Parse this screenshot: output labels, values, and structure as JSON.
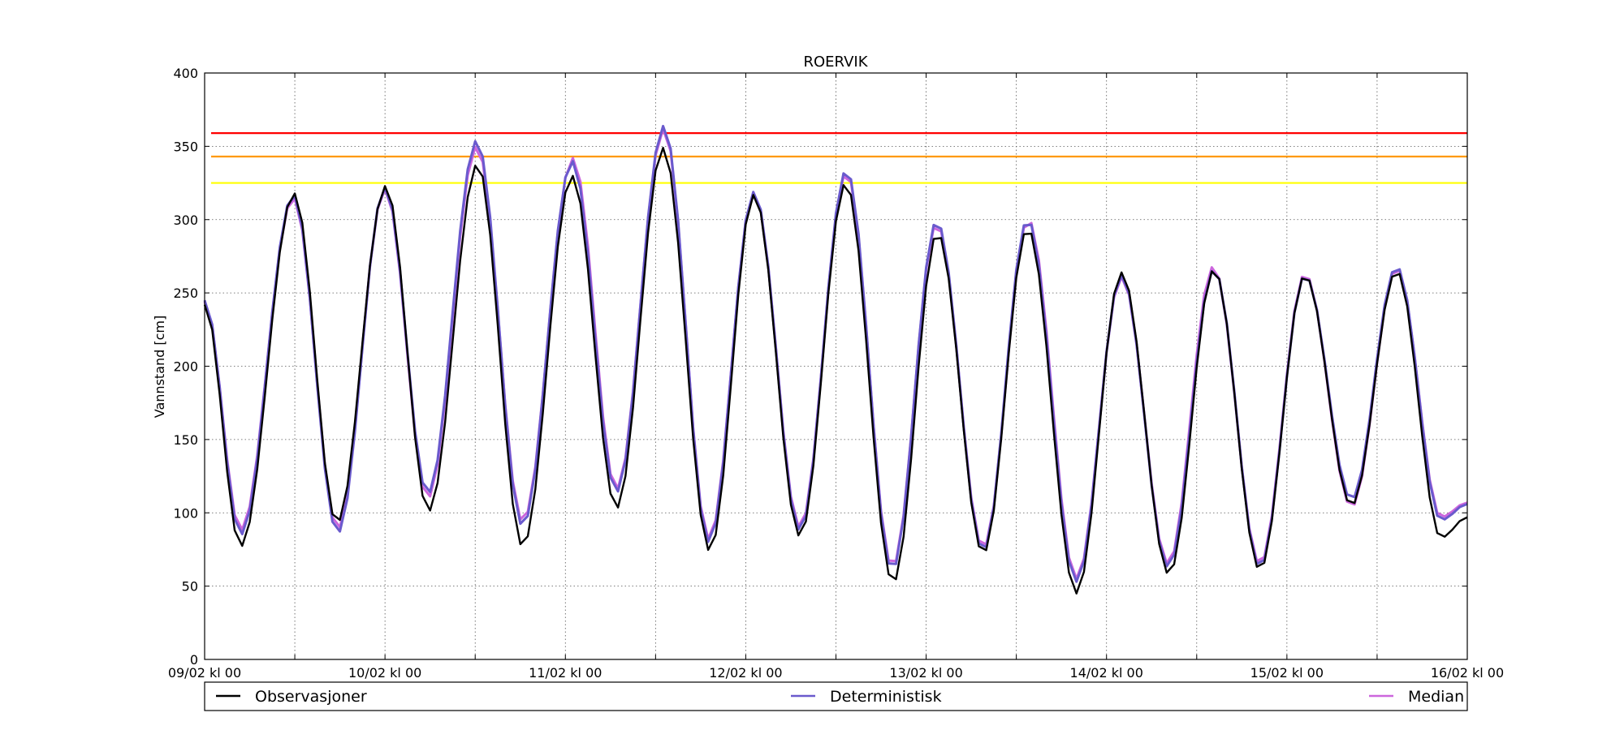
{
  "chart_data": {
    "type": "line",
    "title": "ROERVIK",
    "xlabel": "",
    "ylabel": "Vannstand [cm]",
    "ylim": [
      0,
      400
    ],
    "yticks": [
      0,
      50,
      100,
      150,
      200,
      250,
      300,
      350,
      400
    ],
    "xlim_hours": [
      0,
      168
    ],
    "xticks": [
      {
        "h": 0,
        "label": "09/02 kl 00"
      },
      {
        "h": 24,
        "label": "10/02 kl 00"
      },
      {
        "h": 48,
        "label": "11/02 kl 00"
      },
      {
        "h": 72,
        "label": "12/02 kl 00"
      },
      {
        "h": 96,
        "label": "13/02 kl 00"
      },
      {
        "h": 120,
        "label": "14/02 kl 00"
      },
      {
        "h": 144,
        "label": "15/02 kl 00"
      },
      {
        "h": 168,
        "label": "16/02 kl 00"
      }
    ],
    "minor_xticks_hours": [
      12,
      36,
      60,
      84,
      108,
      132,
      156
    ],
    "grid": true,
    "legend_position": "below",
    "thresholds": [
      {
        "value": 359,
        "color": "#ff0000"
      },
      {
        "value": 343,
        "color": "#ff9900"
      },
      {
        "value": 325,
        "color": "#ffff00"
      }
    ],
    "series": [
      {
        "name": "Observasjoner",
        "color": "#000000",
        "extrema": [
          [
            0,
            242
          ],
          [
            4.8,
            77
          ],
          [
            11.9,
            318
          ],
          [
            17.6,
            93
          ],
          [
            24.1,
            323
          ],
          [
            29.8,
            101
          ],
          [
            36.3,
            338
          ],
          [
            42.3,
            77
          ],
          [
            48.9,
            330
          ],
          [
            54.8,
            103
          ],
          [
            61.0,
            349
          ],
          [
            67.2,
            74
          ],
          [
            73.1,
            317
          ],
          [
            79.2,
            84
          ],
          [
            85.3,
            325
          ],
          [
            91.6,
            52
          ],
          [
            97.5,
            291
          ],
          [
            103.6,
            72
          ],
          [
            109.5,
            294
          ],
          [
            116.0,
            45
          ],
          [
            122.0,
            264
          ],
          [
            128.3,
            58
          ],
          [
            134.3,
            266
          ],
          [
            140.4,
            61
          ],
          [
            146.4,
            262
          ],
          [
            152.6,
            105
          ],
          [
            158.6,
            265
          ],
          [
            164.5,
            83
          ],
          [
            168,
            97
          ]
        ]
      },
      {
        "name": "Deterministisk",
        "color": "#6a5acd",
        "extrema": [
          [
            0,
            245
          ],
          [
            4.8,
            85
          ],
          [
            11.8,
            317
          ],
          [
            17.7,
            86
          ],
          [
            24.0,
            322
          ],
          [
            29.7,
            113
          ],
          [
            36.2,
            354
          ],
          [
            42.3,
            91
          ],
          [
            48.9,
            340
          ],
          [
            54.8,
            114
          ],
          [
            61.1,
            364
          ],
          [
            67.1,
            80
          ],
          [
            73.1,
            319
          ],
          [
            79.2,
            88
          ],
          [
            85.4,
            334
          ],
          [
            91.5,
            61
          ],
          [
            97.4,
            299
          ],
          [
            103.6,
            74
          ],
          [
            109.5,
            300
          ],
          [
            116.0,
            53
          ],
          [
            122.0,
            262
          ],
          [
            128.2,
            63
          ],
          [
            134.3,
            266
          ],
          [
            140.4,
            63
          ],
          [
            146.4,
            262
          ],
          [
            152.6,
            109
          ],
          [
            158.6,
            268
          ],
          [
            164.5,
            95
          ],
          [
            168,
            106
          ]
        ]
      },
      {
        "name": "Median",
        "color": "#cc66dd",
        "extrema": [
          [
            0,
            244
          ],
          [
            4.8,
            88
          ],
          [
            11.8,
            315
          ],
          [
            17.7,
            89
          ],
          [
            24.0,
            321
          ],
          [
            29.7,
            110
          ],
          [
            36.2,
            350
          ],
          [
            42.3,
            94
          ],
          [
            49.0,
            342
          ],
          [
            54.8,
            116
          ],
          [
            61.1,
            362
          ],
          [
            67.1,
            82
          ],
          [
            73.1,
            318
          ],
          [
            79.2,
            90
          ],
          [
            85.4,
            332
          ],
          [
            91.5,
            63
          ],
          [
            97.4,
            297
          ],
          [
            103.6,
            76
          ],
          [
            109.6,
            300
          ],
          [
            116.0,
            55
          ],
          [
            122.0,
            261
          ],
          [
            128.2,
            65
          ],
          [
            134.2,
            268
          ],
          [
            140.4,
            65
          ],
          [
            146.4,
            263
          ],
          [
            152.6,
            104
          ],
          [
            158.6,
            267
          ],
          [
            164.5,
            97
          ],
          [
            168,
            107
          ]
        ]
      }
    ]
  }
}
